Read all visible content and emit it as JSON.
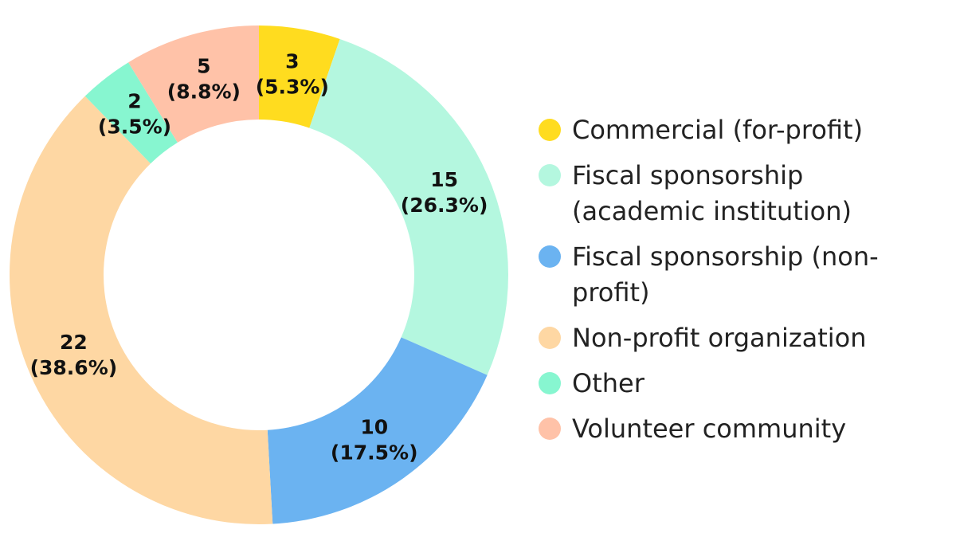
{
  "chart_data": {
    "type": "donut",
    "categories": [
      "Commercial (for-profit)",
      "Fiscal sponsorship (academic institution)",
      "Fiscal sponsorship (non-profit)",
      "Non-profit organization",
      "Other",
      "Volunteer community"
    ],
    "values": [
      3,
      15,
      10,
      22,
      2,
      5
    ],
    "percent_labels": [
      "(5.3%)",
      "(26.3%)",
      "(17.5%)",
      "(38.6%)",
      "(3.5%)",
      "(8.8%)"
    ],
    "colors": [
      "#ffdc1f",
      "#b4f7df",
      "#6bb3f1",
      "#fed7a3",
      "#87f6d0",
      "#ffc2a8"
    ],
    "legend": "right"
  }
}
